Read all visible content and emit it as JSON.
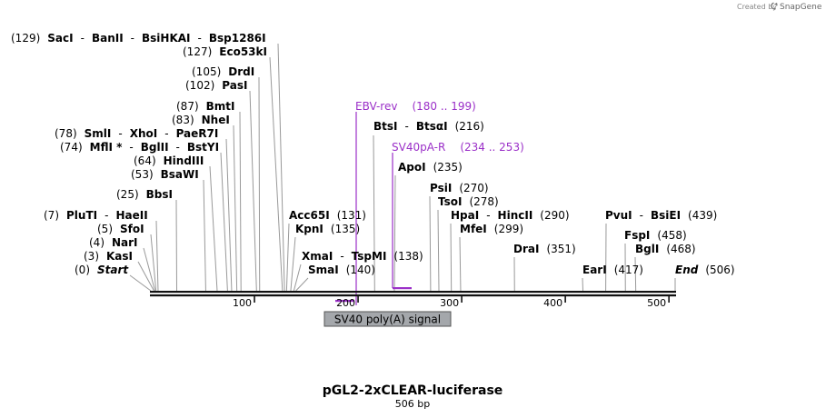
{
  "credit": "Created by",
  "brand": "SnapGene",
  "brand_icon": "snapgene-logo-icon",
  "title": "pGL2-2xCLEAR-luciferase",
  "subtitle": "506 bp",
  "sequence_length": 506,
  "axis_ticks": [
    "100",
    "200",
    "300",
    "400",
    "500"
  ],
  "feature": {
    "label": "SV40 poly(A) signal",
    "start": 180,
    "end": 253,
    "color": "#a4a7ab"
  },
  "primers": [
    {
      "name": "EBV-rev",
      "range": "(180 .. 199)",
      "start": 180,
      "end": 199,
      "direction": "reverse",
      "color": "#9b30c8"
    },
    {
      "name": "SV40pA-R",
      "range": "(234 .. 253)",
      "start": 234,
      "end": 253,
      "direction": "reverse",
      "color": "#9b30c8"
    }
  ],
  "sites": [
    {
      "text": [
        [
          "(129)",
          "pos"
        ],
        [
          "SacI",
          "nm"
        ],
        [
          "-",
          "pos"
        ],
        [
          "BanII",
          "nm"
        ],
        [
          "-",
          "pos"
        ],
        [
          "BsiHKAI",
          "nm"
        ],
        [
          "-",
          "pos"
        ],
        [
          "Bsp1286I",
          "nm"
        ]
      ],
      "bp": 129
    },
    {
      "text": [
        [
          "(127)",
          "pos"
        ],
        [
          "Eco53kI",
          "nm"
        ]
      ],
      "bp": 127
    },
    {
      "text": [
        [
          "(105)",
          "pos"
        ],
        [
          "DrdI",
          "nm"
        ]
      ],
      "bp": 105
    },
    {
      "text": [
        [
          "(102)",
          "pos"
        ],
        [
          "PasI",
          "nm"
        ]
      ],
      "bp": 102
    },
    {
      "text": [
        [
          "(87)",
          "pos"
        ],
        [
          "BmtI",
          "nm"
        ]
      ],
      "bp": 87
    },
    {
      "text": [
        [
          "(83)",
          "pos"
        ],
        [
          "NheI",
          "nm"
        ]
      ],
      "bp": 83
    },
    {
      "text": [
        [
          "(78)",
          "pos"
        ],
        [
          "SmlI",
          "nm"
        ],
        [
          "-",
          "pos"
        ],
        [
          "XhoI",
          "nm"
        ],
        [
          "-",
          "pos"
        ],
        [
          "PaeR7I",
          "nm"
        ]
      ],
      "bp": 78
    },
    {
      "text": [
        [
          "(74)",
          "pos"
        ],
        [
          "MflI *",
          "nm"
        ],
        [
          "-",
          "pos"
        ],
        [
          "BglII",
          "nm"
        ],
        [
          "-",
          "pos"
        ],
        [
          "BstYI",
          "nm"
        ]
      ],
      "bp": 74
    },
    {
      "text": [
        [
          "(64)",
          "pos"
        ],
        [
          "HindIII",
          "nm"
        ]
      ],
      "bp": 64
    },
    {
      "text": [
        [
          "(53)",
          "pos"
        ],
        [
          "BsaWI",
          "nm"
        ]
      ],
      "bp": 53
    },
    {
      "text": [
        [
          "(25)",
          "pos"
        ],
        [
          "BbsI",
          "nm"
        ]
      ],
      "bp": 25
    },
    {
      "text": [
        [
          "(7)",
          "pos"
        ],
        [
          "PluTI",
          "nm"
        ],
        [
          "-",
          "pos"
        ],
        [
          "HaeII",
          "nm"
        ]
      ],
      "bp": 7
    },
    {
      "text": [
        [
          "(5)",
          "pos"
        ],
        [
          "SfoI",
          "nm"
        ]
      ],
      "bp": 5
    },
    {
      "text": [
        [
          "(4)",
          "pos"
        ],
        [
          "NarI",
          "nm"
        ]
      ],
      "bp": 4
    },
    {
      "text": [
        [
          "(3)",
          "pos"
        ],
        [
          "KasI",
          "nm"
        ]
      ],
      "bp": 3
    },
    {
      "text": [
        [
          "(0)",
          "pos"
        ],
        [
          "Start",
          "nm it"
        ]
      ],
      "bp": 0
    },
    {
      "text": [
        [
          "BtsI",
          "nm"
        ],
        [
          "-",
          "pos"
        ],
        [
          "BtsαI",
          "nm"
        ],
        [
          "(216)",
          "pos"
        ]
      ],
      "bp": 216
    },
    {
      "text": [
        [
          "ApoI",
          "nm"
        ],
        [
          "(235)",
          "pos"
        ]
      ],
      "bp": 235
    },
    {
      "text": [
        [
          "PsiI",
          "nm"
        ],
        [
          "(270)",
          "pos"
        ]
      ],
      "bp": 270
    },
    {
      "text": [
        [
          "TsoI",
          "nm"
        ],
        [
          "(278)",
          "pos"
        ]
      ],
      "bp": 278
    },
    {
      "text": [
        [
          "HpaI",
          "nm"
        ],
        [
          "-",
          "pos"
        ],
        [
          "HincII",
          "nm"
        ],
        [
          "(290)",
          "pos"
        ]
      ],
      "bp": 290
    },
    {
      "text": [
        [
          "MfeI",
          "nm"
        ],
        [
          "(299)",
          "pos"
        ]
      ],
      "bp": 299
    },
    {
      "text": [
        [
          "Acc65I",
          "nm"
        ],
        [
          "(131)",
          "pos"
        ]
      ],
      "bp": 131
    },
    {
      "text": [
        [
          "KpnI",
          "nm"
        ],
        [
          "(135)",
          "pos"
        ]
      ],
      "bp": 135
    },
    {
      "text": [
        [
          "XmaI",
          "nm"
        ],
        [
          "-",
          "pos"
        ],
        [
          "TspMI",
          "nm"
        ],
        [
          "(138)",
          "pos"
        ]
      ],
      "bp": 138
    },
    {
      "text": [
        [
          "SmaI",
          "nm"
        ],
        [
          "(140)",
          "pos"
        ]
      ],
      "bp": 140
    },
    {
      "text": [
        [
          "DraI",
          "nm"
        ],
        [
          "(351)",
          "pos"
        ]
      ],
      "bp": 351
    },
    {
      "text": [
        [
          "PvuI",
          "nm"
        ],
        [
          "-",
          "pos"
        ],
        [
          "BsiEI",
          "nm"
        ],
        [
          "(439)",
          "pos"
        ]
      ],
      "bp": 439
    },
    {
      "text": [
        [
          "FspI",
          "nm"
        ],
        [
          "(458)",
          "pos"
        ]
      ],
      "bp": 458
    },
    {
      "text": [
        [
          "BglI",
          "nm"
        ],
        [
          "(468)",
          "pos"
        ]
      ],
      "bp": 468
    },
    {
      "text": [
        [
          "EarI",
          "nm"
        ],
        [
          "(417)",
          "pos"
        ]
      ],
      "bp": 417
    },
    {
      "text": [
        [
          "End",
          "nm it"
        ],
        [
          "(506)",
          "pos"
        ]
      ],
      "bp": 506
    }
  ]
}
